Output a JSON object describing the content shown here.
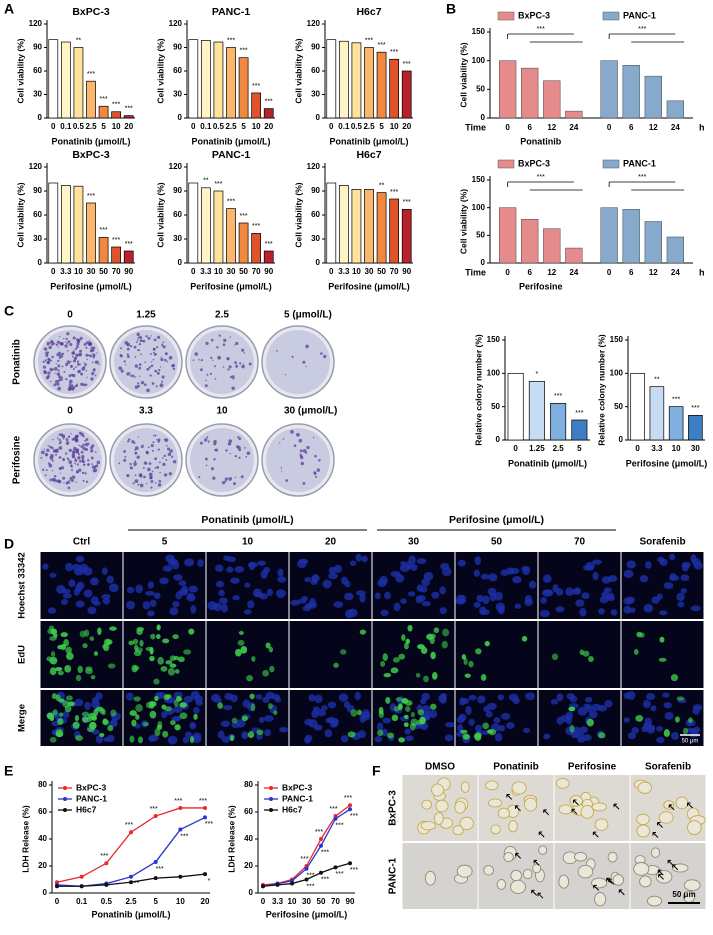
{
  "panel_labels": [
    "A",
    "B",
    "C",
    "D",
    "E",
    "F"
  ],
  "chart_data": [
    {
      "type": "bar",
      "title": "BxPC-3",
      "categories": [
        "0",
        "0.1",
        "0.5",
        "2.5",
        "5",
        "10",
        "20"
      ],
      "values": [
        100,
        97,
        90,
        47,
        15,
        8,
        3
      ],
      "colors": [
        "#ffffff",
        "#fff3c8",
        "#ffe29c",
        "#f9b66c",
        "#f08840",
        "#de532c",
        "#b8222a"
      ],
      "significance": [
        null,
        null,
        "**",
        "***",
        "***",
        "***",
        "***"
      ],
      "xlabel": "Ponatinib (μmol/L)",
      "ylabel": "Cell viability (%)",
      "ylim": [
        0,
        120
      ],
      "yticks": [
        0,
        30,
        60,
        90,
        120
      ]
    },
    {
      "type": "bar",
      "title": "PANC-1",
      "categories": [
        "0",
        "0.1",
        "0.5",
        "2.5",
        "5",
        "10",
        "20"
      ],
      "values": [
        100,
        99,
        97,
        90,
        77,
        32,
        12
      ],
      "colors": [
        "#ffffff",
        "#fff3c8",
        "#ffe29c",
        "#f9b66c",
        "#f08840",
        "#de532c",
        "#b8222a"
      ],
      "significance": [
        null,
        null,
        null,
        "***",
        "***",
        "***",
        "***"
      ],
      "xlabel": "Ponatinib (μmol/L)",
      "ylabel": "Cell viability (%)",
      "ylim": [
        0,
        120
      ],
      "yticks": [
        0,
        30,
        60,
        90,
        120
      ]
    },
    {
      "type": "bar",
      "title": "H6c7",
      "categories": [
        "0",
        "0.1",
        "0.5",
        "2.5",
        "5",
        "10",
        "20"
      ],
      "values": [
        100,
        98,
        96,
        90,
        84,
        75,
        60
      ],
      "colors": [
        "#ffffff",
        "#fff3c8",
        "#ffe29c",
        "#f9b66c",
        "#f08840",
        "#de532c",
        "#b8222a"
      ],
      "significance": [
        null,
        null,
        null,
        "***",
        "***",
        "***",
        "***"
      ],
      "xlabel": "Ponatinib (μmol/L)",
      "ylabel": "Cell viability (%)",
      "ylim": [
        0,
        120
      ],
      "yticks": [
        0,
        30,
        60,
        90,
        120
      ]
    },
    {
      "type": "bar",
      "title": "BxPC-3",
      "categories": [
        "0",
        "3.3",
        "10",
        "30",
        "50",
        "70",
        "90"
      ],
      "values": [
        100,
        97,
        96,
        75,
        32,
        20,
        15
      ],
      "colors": [
        "#ffffff",
        "#fff3c8",
        "#ffe29c",
        "#f9b66c",
        "#f08840",
        "#de532c",
        "#b8222a"
      ],
      "significance": [
        null,
        null,
        null,
        "***",
        "***",
        "***",
        "***"
      ],
      "xlabel": "Perifosine (μmol/L)",
      "ylabel": "Cell viability (%)",
      "ylim": [
        0,
        120
      ],
      "yticks": [
        0,
        30,
        60,
        90,
        120
      ]
    },
    {
      "type": "bar",
      "title": "PANC-1",
      "categories": [
        "0",
        "3.3",
        "10",
        "30",
        "50",
        "70",
        "90"
      ],
      "values": [
        100,
        94,
        90,
        68,
        50,
        37,
        15
      ],
      "colors": [
        "#ffffff",
        "#fff3c8",
        "#ffe29c",
        "#f9b66c",
        "#f08840",
        "#de532c",
        "#b8222a"
      ],
      "significance": [
        null,
        "**",
        "***",
        "***",
        "***",
        "***",
        "***"
      ],
      "xlabel": "Perifosine (μmol/L)",
      "ylabel": "Cell viability (%)",
      "ylim": [
        0,
        120
      ],
      "yticks": [
        0,
        30,
        60,
        90,
        120
      ]
    },
    {
      "type": "bar",
      "title": "H6c7",
      "categories": [
        "0",
        "3.3",
        "10",
        "30",
        "50",
        "70",
        "90"
      ],
      "values": [
        100,
        97,
        92,
        92,
        88,
        80,
        67
      ],
      "colors": [
        "#ffffff",
        "#fff3c8",
        "#ffe29c",
        "#f9b66c",
        "#f08840",
        "#de532c",
        "#b8222a"
      ],
      "significance": [
        null,
        null,
        null,
        null,
        "**",
        "***",
        "***"
      ],
      "xlabel": "Perifosine (μmol/L)",
      "ylabel": "Cell viability (%)",
      "ylim": [
        0,
        120
      ],
      "yticks": [
        0,
        30,
        60,
        90,
        120
      ]
    },
    {
      "type": "grouped_bar",
      "categories": [
        "0",
        "6",
        "12",
        "24"
      ],
      "series": [
        {
          "name": "BxPC-3",
          "color": "#e58b8b",
          "values": [
            100,
            87,
            65,
            12
          ],
          "significance": "***"
        },
        {
          "name": "PANC-1",
          "color": "#86a9cc",
          "values": [
            100,
            92,
            73,
            30
          ],
          "significance": "***"
        }
      ],
      "category_title": "Time",
      "unit": "h",
      "xlabel": "Ponatinib",
      "ylabel": "Cell viability (%)",
      "ylim": [
        0,
        150
      ],
      "yticks": [
        0,
        50,
        100,
        150
      ]
    },
    {
      "type": "grouped_bar",
      "categories": [
        "0",
        "6",
        "12",
        "24"
      ],
      "series": [
        {
          "name": "BxPC-3",
          "color": "#e58b8b",
          "values": [
            100,
            79,
            62,
            27
          ],
          "significance": "***"
        },
        {
          "name": "PANC-1",
          "color": "#86a9cc",
          "values": [
            100,
            97,
            75,
            47
          ],
          "significance": "***"
        }
      ],
      "category_title": "Time",
      "unit": "h",
      "xlabel": "Perifosine",
      "ylabel": "Cell viability (%)",
      "ylim": [
        0,
        150
      ],
      "yticks": [
        0,
        50,
        100,
        150
      ]
    },
    {
      "type": "bar",
      "categories": [
        "0",
        "1.25",
        "2.5",
        "5"
      ],
      "values": [
        100,
        88,
        55,
        30
      ],
      "colors": [
        "#ffffff",
        "#c6dcf2",
        "#7fb0e0",
        "#3d7fc6"
      ],
      "significance": [
        null,
        "*",
        "***",
        "***"
      ],
      "xlabel": "Ponatinib (μmol/L)",
      "ylabel": "Relative colony number (%)",
      "ylim": [
        0,
        150
      ],
      "yticks": [
        0,
        50,
        100,
        150
      ]
    },
    {
      "type": "bar",
      "categories": [
        "0",
        "3.3",
        "10",
        "30"
      ],
      "values": [
        100,
        80,
        50,
        37
      ],
      "colors": [
        "#ffffff",
        "#c6dcf2",
        "#7fb0e0",
        "#3d7fc6"
      ],
      "significance": [
        null,
        "**",
        "***",
        "***"
      ],
      "xlabel": "Perifosine (μmol/L)",
      "ylabel": "Relative colony number (%)",
      "ylim": [
        0,
        150
      ],
      "yticks": [
        0,
        50,
        100,
        150
      ]
    },
    {
      "type": "line",
      "categories": [
        "0",
        "0.1",
        "0.5",
        "2.5",
        "5",
        "10",
        "20"
      ],
      "series": [
        {
          "name": "BxPC-3",
          "color": "#e8282c",
          "values": [
            8,
            12,
            22,
            45,
            57,
            63,
            63
          ],
          "significance": [
            null,
            null,
            "***",
            "***",
            "***",
            "***",
            "***"
          ]
        },
        {
          "name": "PANC-1",
          "color": "#2a35d0",
          "values": [
            6,
            5,
            7,
            12,
            23,
            47,
            56
          ],
          "significance": [
            null,
            null,
            null,
            "***",
            "***",
            "***",
            "***"
          ]
        },
        {
          "name": "H6c7",
          "color": "#111111",
          "values": [
            5,
            5,
            6,
            8,
            11,
            12,
            14
          ],
          "significance": [
            null,
            null,
            null,
            null,
            null,
            null,
            "*"
          ]
        }
      ],
      "xlabel": "Ponatinib (μmol/L)",
      "ylabel": "LDH Release (%)",
      "ylim": [
        0,
        80
      ],
      "yticks": [
        0,
        20,
        40,
        60,
        80
      ],
      "legend": "upper left"
    },
    {
      "type": "line",
      "categories": [
        "0",
        "3.3",
        "10",
        "30",
        "50",
        "70",
        "90"
      ],
      "series": [
        {
          "name": "BxPC-3",
          "color": "#e8282c",
          "values": [
            6,
            7,
            10,
            20,
            40,
            57,
            65
          ],
          "significance": [
            null,
            null,
            null,
            "***",
            "***",
            "***",
            "***"
          ]
        },
        {
          "name": "PANC-1",
          "color": "#2a35d0",
          "values": [
            5,
            7,
            9,
            18,
            35,
            55,
            62
          ],
          "significance": [
            null,
            null,
            null,
            "***",
            "***",
            "***",
            "***"
          ]
        },
        {
          "name": "H6c7",
          "color": "#111111",
          "values": [
            5,
            6,
            7,
            10,
            15,
            19,
            22
          ],
          "significance": [
            null,
            null,
            null,
            "***",
            "***",
            "***",
            "***"
          ]
        }
      ],
      "xlabel": "Perifosine (μmol/L)",
      "ylabel": "LDH Release (%)",
      "ylim": [
        0,
        80
      ],
      "yticks": [
        0,
        20,
        40,
        60,
        80
      ],
      "legend": "upper left"
    }
  ],
  "colony": {
    "row_labels": [
      "Ponatinib",
      "Perifosine"
    ],
    "col_labels": [
      [
        "0",
        "1.25",
        "2.5",
        "5 (μmol/L)"
      ],
      [
        "0",
        "3.3",
        "10",
        "30 (μmol/L)"
      ]
    ]
  },
  "edu": {
    "group_labels": [
      "Ponatinib (μmol/L)",
      "Perifosine (μmol/L)"
    ],
    "col_labels": [
      "Ctrl",
      "5",
      "10",
      "20",
      "30",
      "50",
      "70",
      "Sorafenib"
    ],
    "row_labels": [
      "Hoechst 33342",
      "EdU",
      "Merge"
    ],
    "scale_bar": "50 μm"
  },
  "morphology": {
    "col_labels": [
      "DMSO",
      "Ponatinib",
      "Perifosine",
      "Sorafenib"
    ],
    "row_labels": [
      "BxPC-3",
      "PANC-1"
    ],
    "scale_bar": "50 μm"
  }
}
